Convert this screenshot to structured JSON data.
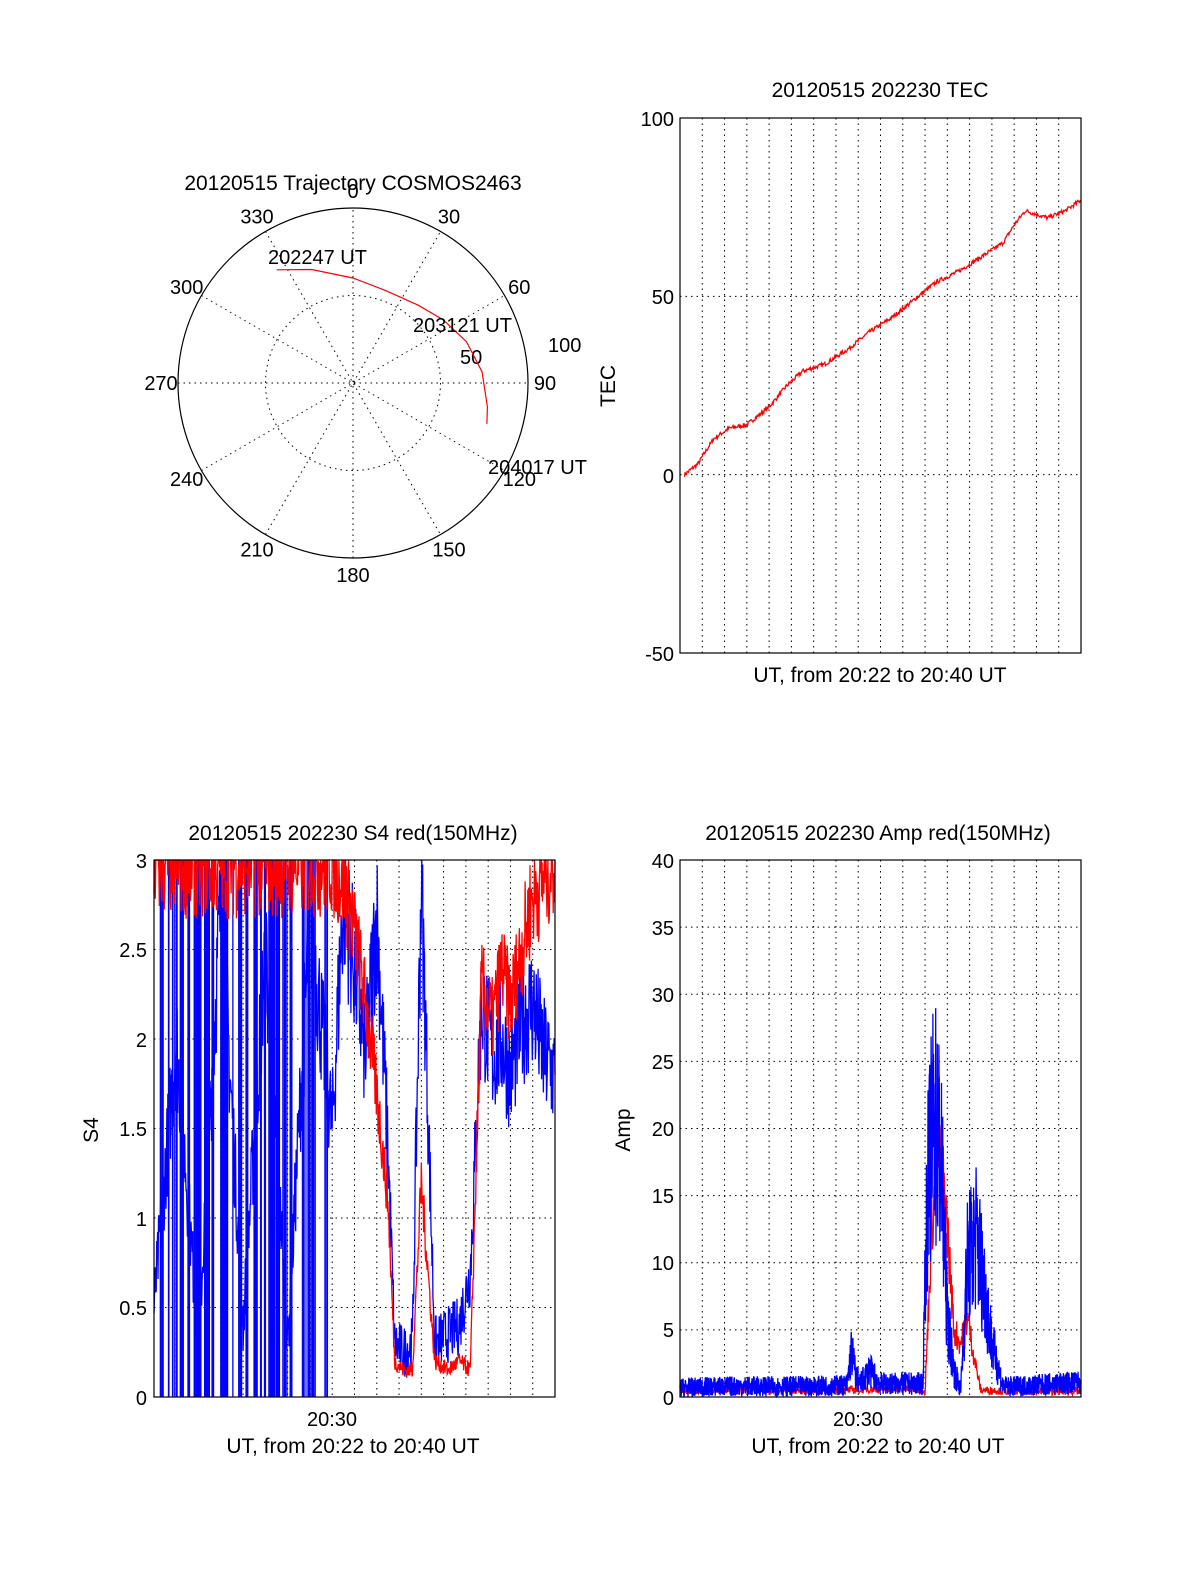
{
  "colors": {
    "primary": "#ff0000",
    "secondary": "#0000ff",
    "grid": "#000000",
    "axis": "#000000"
  },
  "chart_data": [
    {
      "type": "polar",
      "title": "20120515 Trajectory COSMOS2463",
      "angle_labels": [
        "0",
        "30",
        "60",
        "90",
        "120",
        "150",
        "180",
        "210",
        "240",
        "270",
        "300",
        "330"
      ],
      "radius_labels": [
        "50",
        "100"
      ],
      "points": [
        {
          "label": "202247 UT",
          "az": -34,
          "r": 78
        },
        {
          "label": "203121 UT",
          "az": 55,
          "r": 63
        },
        {
          "label": "204017 UT",
          "az": 107,
          "r": 80
        }
      ],
      "trajectory": [
        [
          -34,
          78
        ],
        [
          -20,
          69
        ],
        [
          0,
          60
        ],
        [
          20,
          56
        ],
        [
          40,
          58
        ],
        [
          55,
          63
        ],
        [
          70,
          69
        ],
        [
          85,
          74
        ],
        [
          100,
          78
        ],
        [
          107,
          80
        ]
      ]
    },
    {
      "type": "line",
      "title": "20120515 202230 TEC",
      "xlabel": "UT, from 20:22 to 20:40 UT",
      "ylabel": "TEC",
      "xlim": [
        0,
        18
      ],
      "ylim": [
        -50,
        100
      ],
      "yticks": [
        "100",
        "50",
        "0",
        "-50"
      ],
      "series": [
        {
          "x": [
            0.2,
            0.8,
            1.5,
            2.2,
            3,
            4,
            4.8,
            5.5,
            6.5,
            7.5,
            8.5,
            9.5,
            10.5,
            11.5,
            12.5,
            13.5,
            14.5,
            15,
            15.5,
            16.5,
            17.3,
            18
          ],
          "y": [
            0,
            3,
            10,
            13,
            14,
            19,
            25,
            29,
            31,
            35,
            40,
            44,
            49,
            54,
            57,
            61,
            65,
            70,
            74,
            72,
            74,
            77
          ]
        }
      ]
    },
    {
      "type": "line",
      "title": "20120515 202230 S4 red(150MHz)",
      "xlabel": "UT, from 20:22 to 20:40 UT",
      "ylabel": "S4",
      "xlim": [
        0,
        18
      ],
      "ylim": [
        0,
        3
      ],
      "yticks": [
        "3",
        "2.5",
        "2",
        "1.5",
        "1",
        "0.5",
        "0"
      ],
      "xticks": [
        {
          "x": 8,
          "label": "20:30"
        }
      ],
      "series": [
        {
          "x": [
            0,
            1,
            2,
            3,
            4,
            5,
            6,
            7,
            8,
            8.5,
            9,
            9.5,
            10,
            10.5,
            10.8,
            11.2,
            11.6,
            12,
            12.6,
            13.2,
            13.7,
            14.2,
            14.7,
            15.2,
            15.6,
            16,
            16.5,
            17,
            17.5,
            18
          ],
          "y": [
            3,
            3,
            3,
            3,
            3,
            3,
            3,
            3,
            3,
            2.9,
            2.6,
            2.2,
            1.7,
            1.1,
            0.2,
            0.15,
            0.15,
            1.2,
            0.2,
            0.15,
            0.2,
            0.15,
            2.3,
            2.1,
            2.4,
            2.2,
            2.5,
            2.8,
            2.9,
            3
          ]
        },
        {
          "x": [
            0,
            1,
            2,
            3,
            4,
            5,
            6,
            7,
            8,
            8.5,
            9,
            9.5,
            10,
            10.5,
            10.8,
            11.2,
            11.6,
            12,
            12.6,
            13.2,
            13.7,
            14.2,
            14.7,
            15.2,
            15.6,
            16,
            16.5,
            17,
            17.5,
            18
          ],
          "y": [
            0.5,
            2,
            0.3,
            2.8,
            0.4,
            2.5,
            0.3,
            2.7,
            1.5,
            2.8,
            2.4,
            1.9,
            2.7,
            1.4,
            0.3,
            0.25,
            0.3,
            2.9,
            0.3,
            0.35,
            0.4,
            0.7,
            2.2,
            1.9,
            2.0,
            1.8,
            2.1,
            2.2,
            1.9,
            1.8
          ]
        }
      ]
    },
    {
      "type": "line",
      "title": "20120515 202230 Amp red(150MHz)",
      "xlabel": "UT, from 20:22 to 20:40 UT",
      "ylabel": "Amp",
      "xlim": [
        0,
        18
      ],
      "ylim": [
        0,
        40
      ],
      "yticks": [
        "40",
        "35",
        "30",
        "25",
        "20",
        "15",
        "10",
        "5",
        "0"
      ],
      "xticks": [
        {
          "x": 8,
          "label": "20:30"
        }
      ],
      "series": [
        {
          "x": [
            0,
            2,
            4,
            6,
            7.5,
            8.5,
            10.9,
            11,
            11.3,
            11.6,
            11.9,
            12.1,
            12.3,
            12.6,
            12.9,
            13.2,
            13.5,
            14,
            15,
            16,
            17,
            18
          ],
          "y": [
            0.5,
            0.5,
            0.5,
            0.5,
            0.5,
            0.6,
            0.6,
            0.2,
            13,
            18,
            15,
            10,
            5,
            4,
            6,
            3,
            0.5,
            0.5,
            0.4,
            0.4,
            0.4,
            0.4
          ]
        },
        {
          "x": [
            0,
            2,
            4,
            6,
            7.5,
            7.7,
            7.9,
            8.1,
            8.5,
            9,
            10,
            10.9,
            11.1,
            11.4,
            11.7,
            12,
            12.3,
            12.6,
            12.9,
            13.3,
            13.6,
            14,
            14.5,
            15,
            16,
            17,
            18
          ],
          "y": [
            0.7,
            0.8,
            0.8,
            0.8,
            0.9,
            3.5,
            1.5,
            1,
            2,
            1,
            1,
            1,
            15,
            21,
            18,
            6,
            2,
            0.5,
            10,
            12,
            9,
            4,
            0.8,
            0.8,
            0.9,
            1,
            1.1
          ]
        }
      ]
    }
  ]
}
